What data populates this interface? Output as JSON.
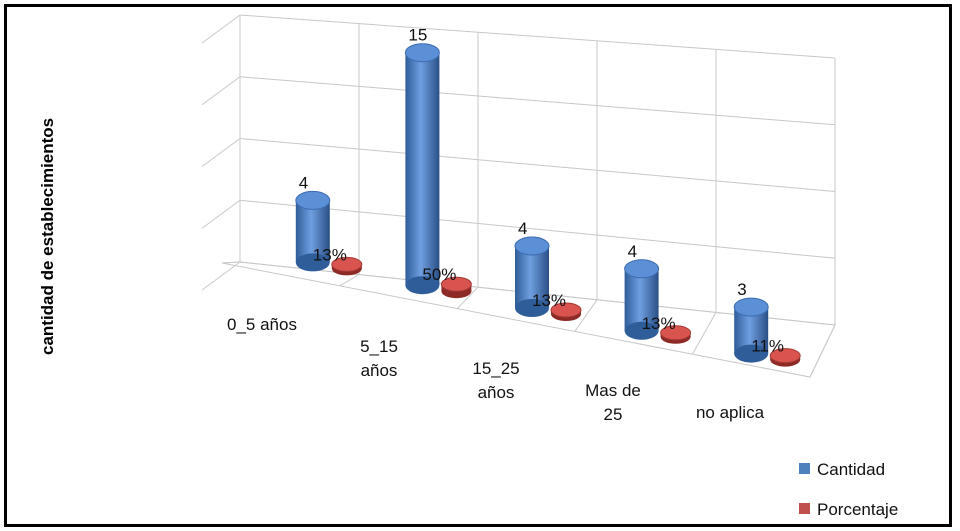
{
  "chart_data": {
    "type": "bar",
    "style": "3d-cylinder",
    "title": "",
    "xlabel": "",
    "ylabel": "cantidad de establecimientos",
    "ylim": [
      0,
      16
    ],
    "grid": true,
    "legend_position": "bottom-right",
    "categories": [
      [
        "0_5 años"
      ],
      [
        "5_15",
        "años"
      ],
      [
        "15_25",
        "años"
      ],
      [
        "Mas de",
        "25"
      ],
      [
        "no aplica"
      ]
    ],
    "series": [
      {
        "name": "Cantidad",
        "color": "#4f81bd",
        "values": [
          4,
          15,
          4,
          4,
          3
        ],
        "labels": [
          "4",
          "15",
          "4",
          "4",
          "3"
        ]
      },
      {
        "name": "Porcentaje",
        "color": "#c0504d",
        "values": [
          0.13,
          0.5,
          0.13,
          0.13,
          0.11
        ],
        "labels": [
          "13%",
          "50%",
          "13%",
          "13%",
          "11%"
        ]
      }
    ]
  }
}
